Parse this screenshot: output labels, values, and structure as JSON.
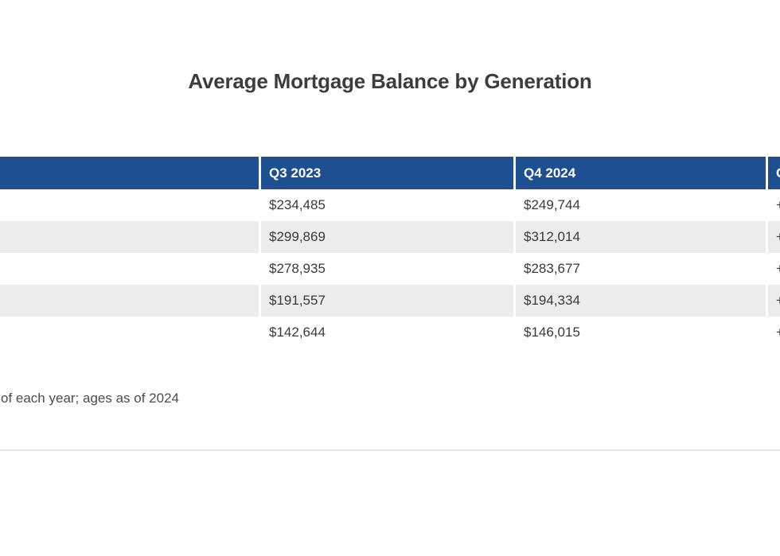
{
  "title": "Average Mortgage Balance by Generation",
  "table": {
    "header": {
      "generation": "",
      "q3": "Q3 2023",
      "q4": "Q4 2024",
      "change": "C"
    },
    "rows": [
      {
        "generation": "",
        "q3": "$234,485",
        "q4": "$249,744",
        "change": "+"
      },
      {
        "generation": "",
        "q3": "$299,869",
        "q4": "$312,014",
        "change": "+"
      },
      {
        "generation": "",
        "q3": "$278,935",
        "q4": "$283,677",
        "change": "+"
      },
      {
        "generation": "",
        "q3": "$191,557",
        "q4": "$194,334",
        "change": "+"
      },
      {
        "generation": "",
        "q3": "$142,644",
        "q4": "$146,015",
        "change": "+"
      }
    ]
  },
  "footnote": "of each year; ages as of 2024",
  "colors": {
    "header_bg": "#1d4f91",
    "header_text": "#ffffff",
    "row_stripe": "#ececec",
    "cell_text": "#3a3a3a",
    "title_text": "#3d3d3d",
    "divider": "#e6e6e6"
  },
  "chart_data": {
    "type": "table",
    "title": "Average Mortgage Balance by Generation",
    "columns": [
      "Q3 2023",
      "Q4 2024"
    ],
    "series": [
      {
        "name": "Q3 2023",
        "values": [
          234485,
          299869,
          278935,
          191557,
          142644
        ]
      },
      {
        "name": "Q4 2024",
        "values": [
          249744,
          312014,
          283677,
          194334,
          146015
        ]
      }
    ],
    "footnote": "of each year; ages as of 2024"
  }
}
